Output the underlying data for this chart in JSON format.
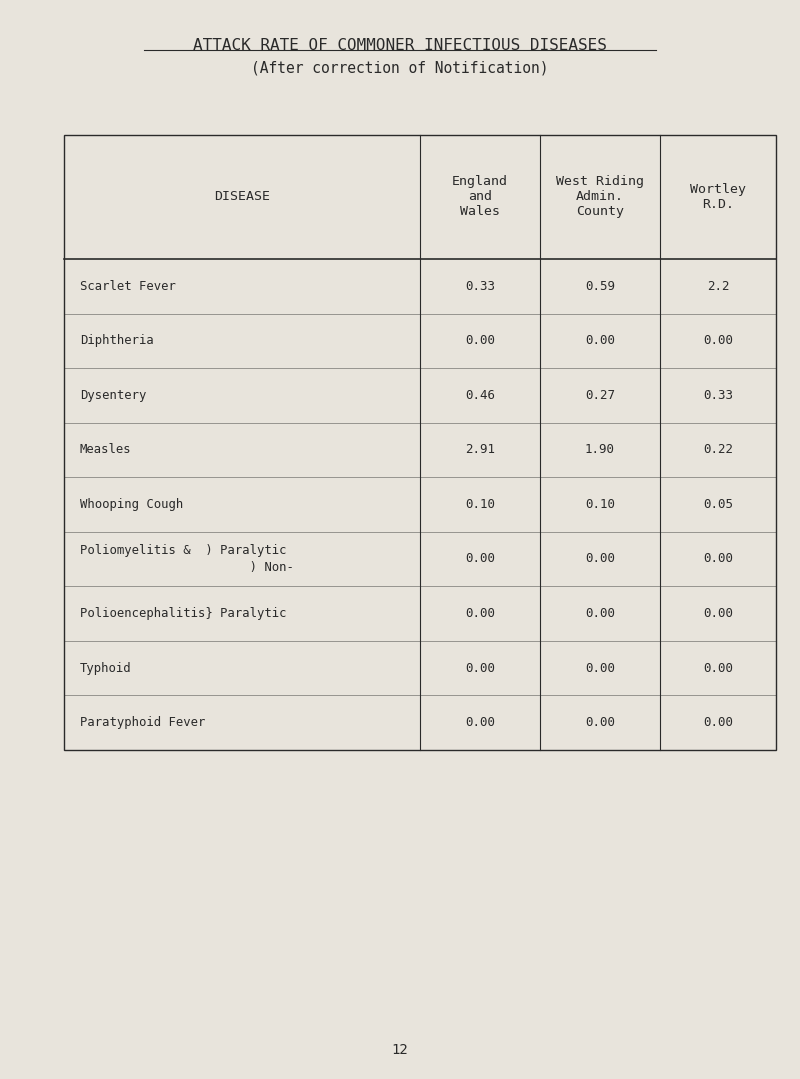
{
  "title": "ATTACK RATE OF COMMONER INFECTIOUS DISEASES",
  "subtitle": "(After correction of Notification)",
  "col_headers": [
    "DISEASE",
    "England\nand\nWales",
    "West Riding\nAdmin.\nCounty",
    "Wortley\nR.D."
  ],
  "rows": [
    [
      "Scarlet Fever",
      "0.33",
      "0.59",
      "2.2"
    ],
    [
      "Diphtheria",
      "0.00",
      "0.00",
      "0.00"
    ],
    [
      "Dysentery",
      "0.46",
      "0.27",
      "0.33"
    ],
    [
      "Measles",
      "2.91",
      "1.90",
      "0.22"
    ],
    [
      "Whooping Cough",
      "0.10",
      "0.10",
      "0.05"
    ],
    [
      "Poliomyelitis &  ) Paralytic\n                       ) Non-",
      "0.00",
      "0.00",
      "0.00"
    ],
    [
      "Polioencephalitis} Paralytic",
      "0.00",
      "0.00",
      "0.00"
    ],
    [
      "Typhoid",
      "0.00",
      "0.00",
      "0.00"
    ],
    [
      "Paratyphoid Fever",
      "0.00",
      "0.00",
      "0.00"
    ]
  ],
  "bg_color": "#e8e4dc",
  "text_color": "#2a2a2a",
  "page_number": "12"
}
